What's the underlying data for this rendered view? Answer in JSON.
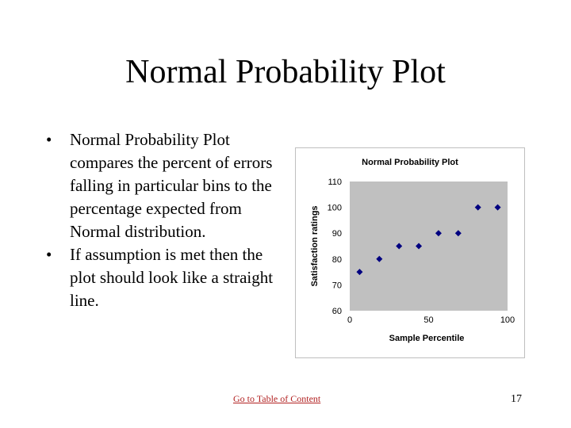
{
  "slide": {
    "title": "Normal Probability Plot",
    "bullets": [
      "Normal Probability Plot compares the percent of errors falling in particular bins to the percentage expected from Normal distribution.",
      "If assumption is met then the plot should look like a straight line."
    ],
    "bullet_marker": "•",
    "footer_link": "Go to Table of Content",
    "page_number": "17",
    "colors": {
      "link": "#b22222",
      "plot_area": "#c0c0c0",
      "marker": "#000080"
    }
  },
  "chart_data": {
    "type": "scatter",
    "title": "Normal Probability Plot",
    "xlabel": "Sample Percentile",
    "ylabel": "Satisfaction ratings",
    "xlim": [
      0,
      100
    ],
    "ylim": [
      60,
      110
    ],
    "xticks": [
      0,
      50,
      100
    ],
    "yticks": [
      60,
      70,
      80,
      90,
      100,
      110
    ],
    "grid": false,
    "legend": false,
    "marker": "diamond",
    "points": [
      {
        "x": 6.25,
        "y": 75
      },
      {
        "x": 18.75,
        "y": 80
      },
      {
        "x": 31.25,
        "y": 85
      },
      {
        "x": 43.75,
        "y": 85
      },
      {
        "x": 56.25,
        "y": 90
      },
      {
        "x": 68.75,
        "y": 90
      },
      {
        "x": 81.25,
        "y": 100
      },
      {
        "x": 93.75,
        "y": 100
      }
    ]
  }
}
